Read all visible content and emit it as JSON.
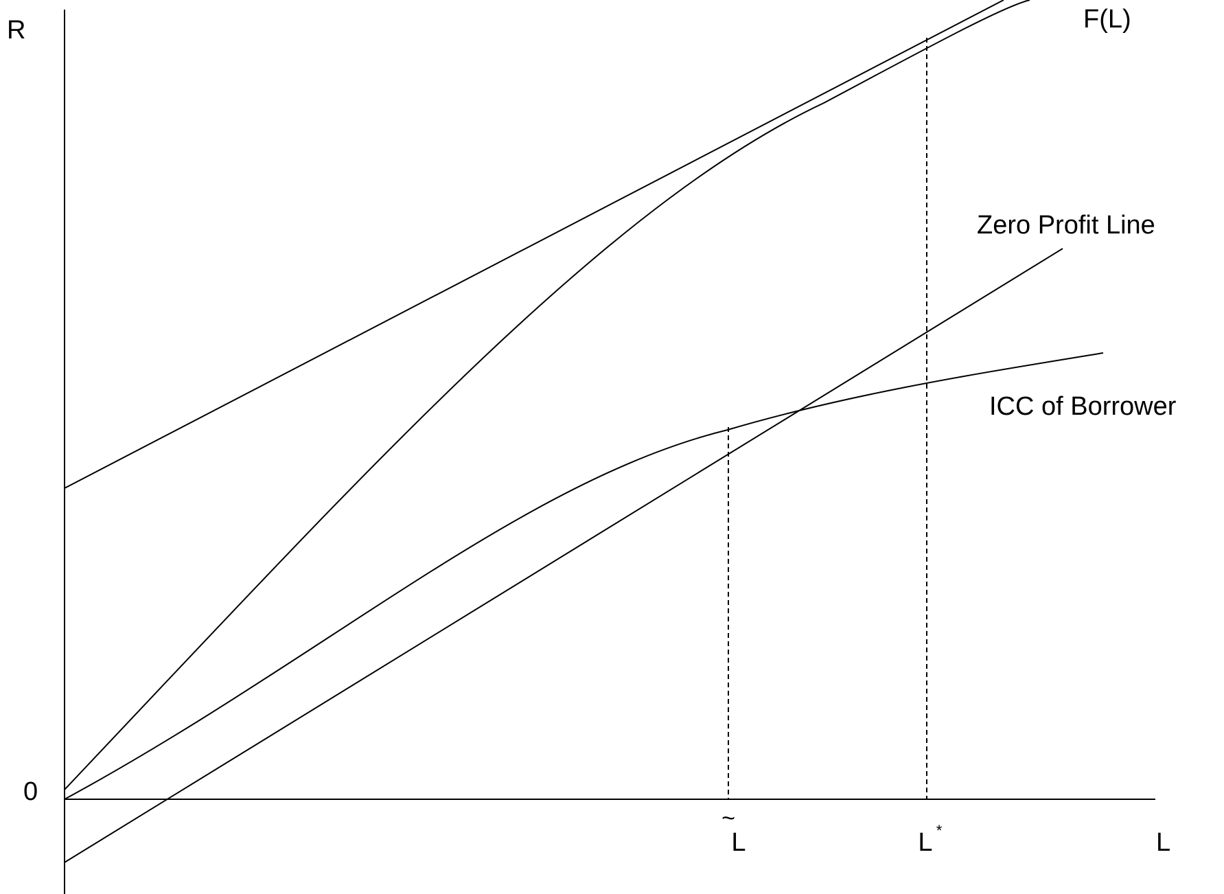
{
  "axes": {
    "y_label": "R",
    "x_label": "L",
    "origin_label": "0"
  },
  "curve_labels": {
    "f_of_l": "F(L)",
    "zero_profit_line": "Zero Profit Line",
    "icc_borrower": "ICC of Borrower"
  },
  "markers": {
    "l_tilde_letter": "L",
    "l_tilde_accent": "~",
    "l_star_letter": "L",
    "l_star_superscript": "*"
  },
  "colors": {
    "line": "#000000",
    "background": "#ffffff"
  }
}
